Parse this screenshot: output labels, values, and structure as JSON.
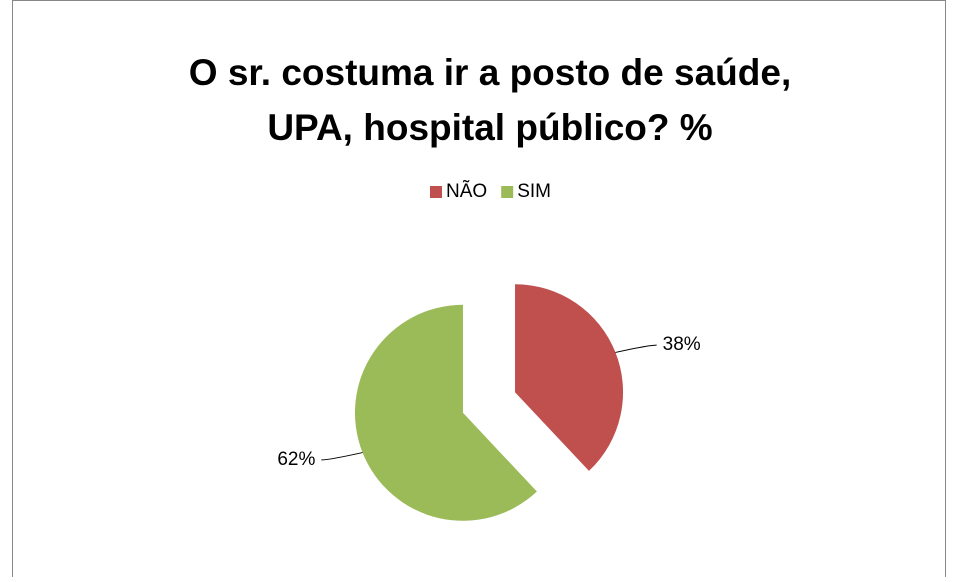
{
  "chart_data": {
    "type": "pie",
    "title": [
      "O sr. costuma ir a posto de saúde,",
      "UPA, hospital público?  %"
    ],
    "categories": [
      "NÃO",
      "SIM"
    ],
    "values": [
      38,
      62
    ],
    "value_labels": [
      "38%",
      "62%"
    ],
    "colors": [
      "#c0504d",
      "#9bbb59"
    ],
    "legend": "top"
  }
}
